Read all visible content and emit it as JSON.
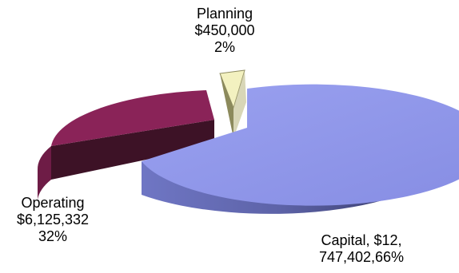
{
  "chart_data": {
    "type": "pie",
    "style": "3d-exploded",
    "slices": [
      {
        "name": "Capital",
        "value": 12747402,
        "percent": 66,
        "color": "#8b93e8",
        "label_lines": [
          "Capital, $12,",
          "747,402,66%"
        ]
      },
      {
        "name": "Operating",
        "value": 6125332,
        "percent": 32,
        "color": "#8a2358",
        "label_lines": [
          "Operating",
          "$6,125,332",
          "32%"
        ]
      },
      {
        "name": "Planning",
        "value": 450000,
        "percent": 2,
        "color": "#f3f1c0",
        "label_lines": [
          "Planning",
          "$450,000",
          "2%"
        ]
      }
    ],
    "legend": "none"
  }
}
